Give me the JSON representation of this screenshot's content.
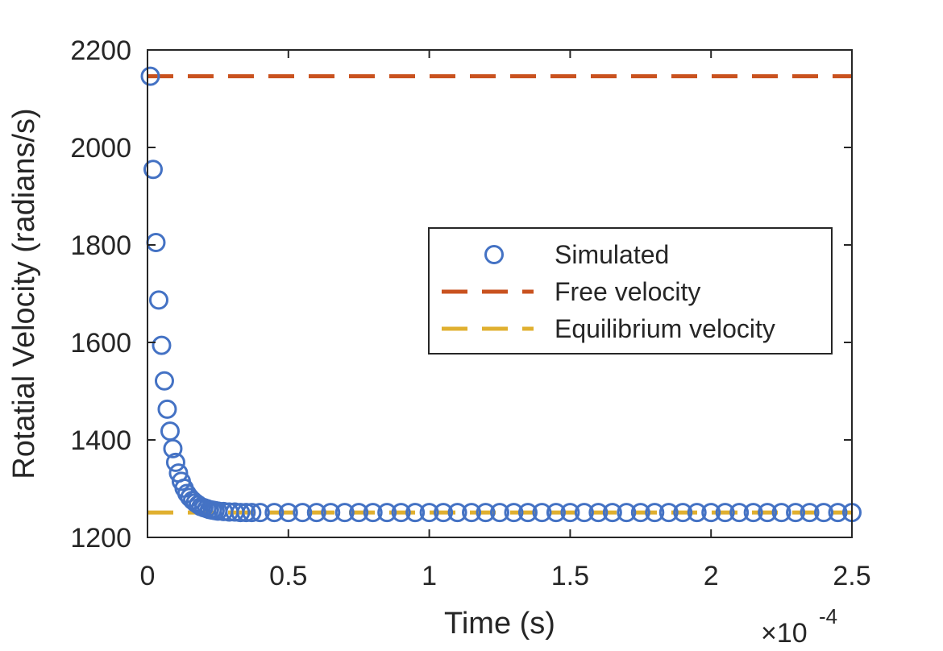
{
  "chart_data": {
    "type": "scatter",
    "xlabel": "Time (s)",
    "ylabel": "Rotatial Velocity (radians/s)",
    "x_exponent_label": "×10",
    "x_exponent_power": "-4",
    "x_scale_factor": 0.0001,
    "xlim": [
      0,
      2.5
    ],
    "ylim": [
      1200,
      2200
    ],
    "x_ticks": [
      0,
      0.5,
      1,
      1.5,
      2,
      2.5
    ],
    "x_tick_labels": [
      "0",
      "0.5",
      "1",
      "1.5",
      "2",
      "2.5"
    ],
    "y_ticks": [
      1200,
      1400,
      1600,
      1800,
      2000,
      2200
    ],
    "y_tick_labels": [
      "1200",
      "1400",
      "1600",
      "1800",
      "2000",
      "2200"
    ],
    "grid": false,
    "legend_position": "center-right",
    "series": [
      {
        "name": "Simulated",
        "style": "circle-markers",
        "color": "#4472c4",
        "x": [
          0.01,
          0.02,
          0.03,
          0.04,
          0.05,
          0.06,
          0.07,
          0.08,
          0.09,
          0.1,
          0.11,
          0.12,
          0.13,
          0.14,
          0.15,
          0.16,
          0.17,
          0.18,
          0.19,
          0.2,
          0.21,
          0.22,
          0.23,
          0.24,
          0.25,
          0.27,
          0.29,
          0.31,
          0.33,
          0.35,
          0.37,
          0.4,
          0.45,
          0.5,
          0.55,
          0.6,
          0.65,
          0.7,
          0.75,
          0.8,
          0.85,
          0.9,
          0.95,
          1.0,
          1.05,
          1.1,
          1.15,
          1.2,
          1.25,
          1.3,
          1.35,
          1.4,
          1.45,
          1.5,
          1.55,
          1.6,
          1.65,
          1.7,
          1.75,
          1.8,
          1.85,
          1.9,
          1.95,
          2.0,
          2.05,
          2.1,
          2.15,
          2.2,
          2.25,
          2.3,
          2.35,
          2.4,
          2.45,
          2.5
        ],
        "y": [
          2146,
          1955,
          1805,
          1687,
          1594,
          1521,
          1463,
          1418,
          1382,
          1354,
          1332,
          1315,
          1301,
          1290,
          1282,
          1276,
          1271,
          1267,
          1263,
          1261,
          1259,
          1257,
          1256,
          1255,
          1254,
          1253,
          1252,
          1252,
          1251,
          1251,
          1251,
          1251,
          1251,
          1251,
          1251,
          1251,
          1251,
          1251,
          1251,
          1251,
          1251,
          1251,
          1251,
          1251,
          1251,
          1251,
          1251,
          1251,
          1251,
          1251,
          1251,
          1251,
          1251,
          1251,
          1251,
          1251,
          1251,
          1251,
          1251,
          1251,
          1251,
          1251,
          1251,
          1251,
          1251,
          1251,
          1251,
          1251,
          1251,
          1251,
          1251,
          1251,
          1251,
          1251
        ]
      },
      {
        "name": "Free velocity",
        "style": "dashed-line",
        "color": "#c9521f",
        "y": 2146
      },
      {
        "name": "Equilibrium velocity",
        "style": "dashed-line",
        "color": "#e0b030",
        "y": 1251
      }
    ]
  }
}
